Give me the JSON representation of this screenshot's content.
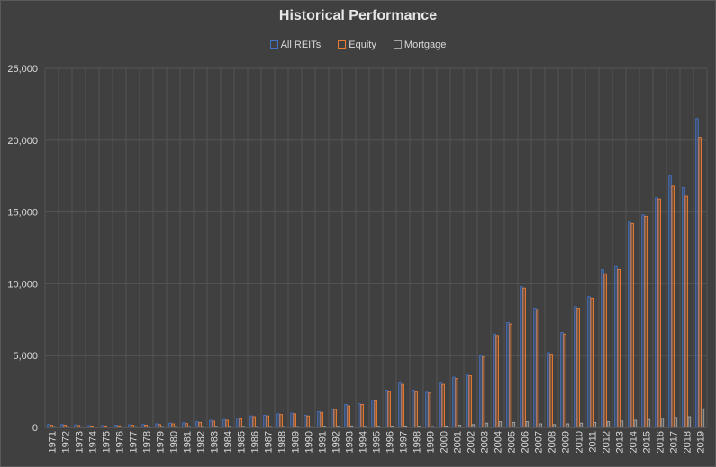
{
  "chart_data": {
    "type": "bar",
    "title": "Historical Performance",
    "xlabel": "",
    "ylabel": "",
    "ylim": [
      0,
      25000
    ],
    "yticks": [
      "0",
      "5,000",
      "10,000",
      "15,000",
      "20,000",
      "25,000"
    ],
    "grid": true,
    "legend_position": "top",
    "categories": [
      "1971",
      "1972",
      "1973",
      "1974",
      "1975",
      "1976",
      "1977",
      "1978",
      "1979",
      "1980",
      "1981",
      "1982",
      "1983",
      "1984",
      "1985",
      "1986",
      "1987",
      "1988",
      "1989",
      "1990",
      "1991",
      "1992",
      "1993",
      "1994",
      "1995",
      "1996",
      "1997",
      "1998",
      "1999",
      "2000",
      "2001",
      "2002",
      "2003",
      "2004",
      "2005",
      "2006",
      "2007",
      "2008",
      "2009",
      "2010",
      "2011",
      "2012",
      "2013",
      "2014",
      "2015",
      "2016",
      "2017",
      "2018",
      "2019"
    ],
    "series": [
      {
        "name": "All REITs",
        "color": "#4472c4",
        "values": [
          200,
          200,
          180,
          120,
          130,
          150,
          190,
          200,
          250,
          300,
          320,
          400,
          500,
          550,
          650,
          800,
          850,
          950,
          1000,
          850,
          1100,
          1300,
          1600,
          1650,
          1900,
          2600,
          3100,
          2600,
          2450,
          3100,
          3500,
          3650,
          5000,
          6500,
          7300,
          9800,
          8300,
          5200,
          6600,
          8400,
          9100,
          11000,
          11200,
          14300,
          14800,
          16000,
          17500,
          16700,
          21500
        ]
      },
      {
        "name": "Equity",
        "color": "#ed7d31",
        "values": [
          150,
          150,
          130,
          90,
          100,
          110,
          150,
          160,
          200,
          250,
          270,
          350,
          440,
          500,
          600,
          750,
          800,
          900,
          950,
          800,
          1050,
          1250,
          1500,
          1600,
          1850,
          2500,
          3000,
          2500,
          2400,
          3000,
          3400,
          3600,
          4900,
          6400,
          7200,
          9700,
          8200,
          5100,
          6500,
          8300,
          9000,
          10700,
          11000,
          14200,
          14700,
          15900,
          16800,
          16100,
          20200
        ]
      },
      {
        "name": "Mortgage",
        "color": "#a5a5a5",
        "values": [
          50,
          50,
          40,
          30,
          30,
          40,
          50,
          50,
          60,
          60,
          60,
          60,
          70,
          70,
          70,
          60,
          60,
          60,
          60,
          50,
          80,
          80,
          100,
          70,
          80,
          90,
          90,
          80,
          60,
          100,
          150,
          200,
          300,
          400,
          350,
          400,
          250,
          200,
          250,
          300,
          350,
          400,
          450,
          500,
          550,
          650,
          700,
          750,
          1300
        ]
      }
    ]
  }
}
